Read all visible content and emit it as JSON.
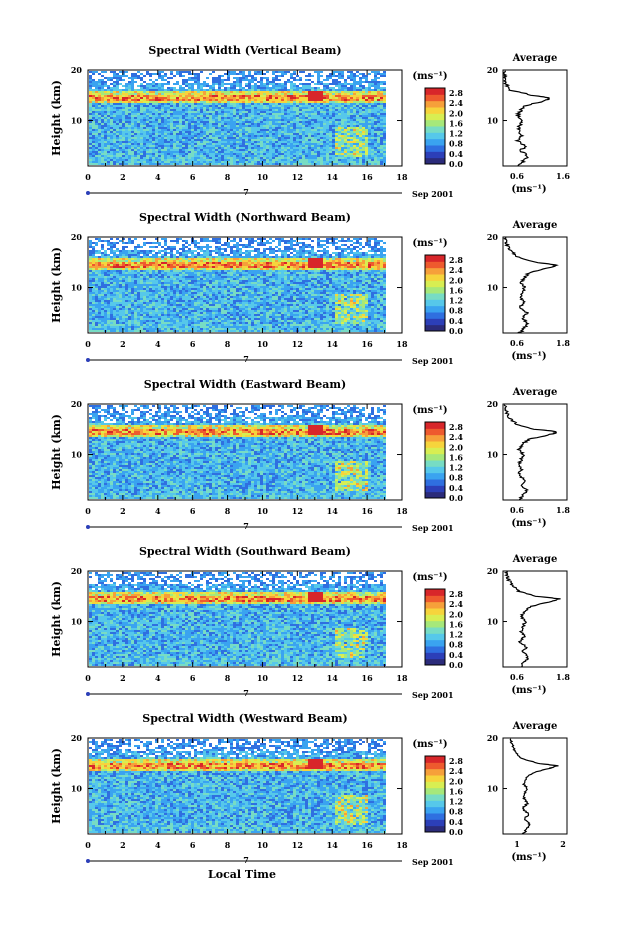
{
  "figure": {
    "xlabel": "Local Time",
    "date_label": "Sep 2001",
    "date_tick": "7",
    "ylabel": "Height (km)",
    "avg_title": "Average",
    "unit_html": "(ms⁻¹)"
  },
  "colors": {
    "scale": [
      "#2b2b7a",
      "#2c3fb8",
      "#2f6fe0",
      "#3aa3f0",
      "#56c8ea",
      "#77dcc4",
      "#a6e87a",
      "#d8ee52",
      "#f6d43c",
      "#f6a03a",
      "#ee5a2e",
      "#d8262a"
    ],
    "background": "#ffffff"
  },
  "chart_data": [
    {
      "type": "heatmap",
      "title": "Spectral Width (Vertical Beam)",
      "x_ticks": [
        0,
        2,
        4,
        6,
        8,
        10,
        12,
        14,
        16,
        18
      ],
      "xlim": [
        0,
        18
      ],
      "y_ticks": [
        10,
        20
      ],
      "ylim": [
        1,
        20
      ],
      "colorbar_ticks": [
        "0.0",
        "0.4",
        "0.8",
        "1.2",
        "1.6",
        "2.0",
        "2.4",
        "2.8"
      ],
      "colorbar_range": [
        0,
        3.0
      ],
      "data_end_hour": 17,
      "average": {
        "xlim": [
          0.6,
          1.6
        ],
        "x_ticks": [
          "0.6",
          "1.6"
        ],
        "profile": [
          [
            1,
            0.84
          ],
          [
            2,
            0.92
          ],
          [
            3,
            0.98
          ],
          [
            4,
            0.88
          ],
          [
            5,
            0.95
          ],
          [
            6,
            0.82
          ],
          [
            7,
            0.9
          ],
          [
            8,
            0.84
          ],
          [
            9,
            0.86
          ],
          [
            10,
            0.9
          ],
          [
            11,
            0.82
          ],
          [
            12,
            0.88
          ],
          [
            13,
            0.96
          ],
          [
            14,
            1.28
          ],
          [
            14.5,
            1.32
          ],
          [
            15,
            1.06
          ],
          [
            16,
            0.72
          ],
          [
            17,
            0.66
          ],
          [
            18,
            0.64
          ],
          [
            19,
            0.62
          ],
          [
            20,
            0.6
          ]
        ]
      }
    },
    {
      "type": "heatmap",
      "title": "Spectral Width (Northward Beam)",
      "x_ticks": [
        0,
        2,
        4,
        6,
        8,
        10,
        12,
        14,
        16,
        18
      ],
      "xlim": [
        0,
        18
      ],
      "y_ticks": [
        10,
        20
      ],
      "ylim": [
        1,
        20
      ],
      "colorbar_ticks": [
        "0.0",
        "0.4",
        "0.8",
        "1.2",
        "1.6",
        "2.0",
        "2.4",
        "2.8"
      ],
      "colorbar_range": [
        0,
        3.0
      ],
      "data_end_hour": 17,
      "average": {
        "xlim": [
          0.6,
          1.8
        ],
        "x_ticks": [
          "0.6",
          "1.8"
        ],
        "profile": [
          [
            1,
            0.92
          ],
          [
            2,
            1.0
          ],
          [
            3,
            1.06
          ],
          [
            4,
            0.96
          ],
          [
            5,
            1.05
          ],
          [
            6,
            0.9
          ],
          [
            7,
            1.0
          ],
          [
            8,
            0.94
          ],
          [
            9,
            0.96
          ],
          [
            10,
            1.0
          ],
          [
            11,
            0.94
          ],
          [
            12,
            1.0
          ],
          [
            13,
            1.1
          ],
          [
            14,
            1.5
          ],
          [
            14.5,
            1.6
          ],
          [
            15,
            1.2
          ],
          [
            16,
            0.88
          ],
          [
            17,
            0.78
          ],
          [
            18,
            0.7
          ],
          [
            19,
            0.66
          ],
          [
            20,
            0.64
          ]
        ]
      }
    },
    {
      "type": "heatmap",
      "title": "Spectral Width (Eastward Beam)",
      "x_ticks": [
        0,
        2,
        4,
        6,
        8,
        10,
        12,
        14,
        16,
        18
      ],
      "xlim": [
        0,
        18
      ],
      "y_ticks": [
        10,
        20
      ],
      "ylim": [
        1,
        20
      ],
      "colorbar_ticks": [
        "0.0",
        "0.4",
        "0.8",
        "1.2",
        "1.6",
        "2.0",
        "2.4",
        "2.8"
      ],
      "colorbar_range": [
        0,
        3.0
      ],
      "data_end_hour": 17,
      "average": {
        "xlim": [
          0.6,
          1.8
        ],
        "x_ticks": [
          "0.6",
          "1.8"
        ],
        "profile": [
          [
            1,
            0.9
          ],
          [
            2,
            0.98
          ],
          [
            3,
            1.04
          ],
          [
            4,
            0.94
          ],
          [
            5,
            1.02
          ],
          [
            6,
            0.88
          ],
          [
            7,
            0.96
          ],
          [
            8,
            0.9
          ],
          [
            9,
            0.94
          ],
          [
            10,
            0.98
          ],
          [
            11,
            0.9
          ],
          [
            12,
            0.96
          ],
          [
            13,
            1.08
          ],
          [
            14,
            1.5
          ],
          [
            14.5,
            1.62
          ],
          [
            15,
            1.2
          ],
          [
            16,
            0.86
          ],
          [
            17,
            0.74
          ],
          [
            18,
            0.68
          ],
          [
            19,
            0.66
          ],
          [
            20,
            0.64
          ]
        ]
      }
    },
    {
      "type": "heatmap",
      "title": "Spectral Width (Southward Beam)",
      "x_ticks": [
        0,
        2,
        4,
        6,
        8,
        10,
        12,
        14,
        16,
        18
      ],
      "xlim": [
        0,
        18
      ],
      "y_ticks": [
        10,
        20
      ],
      "ylim": [
        1,
        20
      ],
      "colorbar_ticks": [
        "0.0",
        "0.4",
        "0.8",
        "1.2",
        "1.6",
        "2.0",
        "2.4",
        "2.8"
      ],
      "colorbar_range": [
        0,
        3.0
      ],
      "data_end_hour": 17,
      "average": {
        "xlim": [
          0.6,
          1.8
        ],
        "x_ticks": [
          "0.6",
          "1.8"
        ],
        "profile": [
          [
            1,
            0.92
          ],
          [
            2,
            1.0
          ],
          [
            3,
            1.08
          ],
          [
            4,
            0.96
          ],
          [
            5,
            1.04
          ],
          [
            6,
            0.92
          ],
          [
            7,
            1.0
          ],
          [
            8,
            0.94
          ],
          [
            9,
            0.98
          ],
          [
            10,
            1.02
          ],
          [
            11,
            0.94
          ],
          [
            12,
            1.0
          ],
          [
            13,
            1.12
          ],
          [
            14,
            1.52
          ],
          [
            14.5,
            1.66
          ],
          [
            15,
            1.24
          ],
          [
            16,
            0.9
          ],
          [
            17,
            0.78
          ],
          [
            18,
            0.72
          ],
          [
            19,
            0.68
          ],
          [
            20,
            0.66
          ]
        ]
      }
    },
    {
      "type": "heatmap",
      "title": "Spectral Width (Westward Beam)",
      "x_ticks": [
        0,
        2,
        4,
        6,
        8,
        10,
        12,
        14,
        16,
        18
      ],
      "xlim": [
        0,
        18
      ],
      "y_ticks": [
        10,
        20
      ],
      "ylim": [
        1,
        20
      ],
      "colorbar_ticks": [
        "0.0",
        "0.4",
        "0.8",
        "1.2",
        "1.6",
        "2.0",
        "2.4",
        "2.8"
      ],
      "colorbar_range": [
        0,
        3.0
      ],
      "data_end_hour": 17,
      "average": {
        "xlim": [
          0.5,
          2.0
        ],
        "x_ticks": [
          "1",
          "2"
        ],
        "profile": [
          [
            1,
            0.98
          ],
          [
            2,
            1.06
          ],
          [
            3,
            1.12
          ],
          [
            4,
            1.0
          ],
          [
            5,
            1.1
          ],
          [
            6,
            0.96
          ],
          [
            7,
            1.06
          ],
          [
            8,
            1.0
          ],
          [
            9,
            1.02
          ],
          [
            10,
            1.06
          ],
          [
            11,
            0.98
          ],
          [
            12,
            1.04
          ],
          [
            13,
            1.16
          ],
          [
            14,
            1.6
          ],
          [
            14.5,
            1.78
          ],
          [
            15,
            1.3
          ],
          [
            16,
            0.94
          ],
          [
            17,
            0.82
          ],
          [
            18,
            0.74
          ],
          [
            19,
            0.7
          ],
          [
            20,
            0.66
          ]
        ]
      }
    }
  ]
}
